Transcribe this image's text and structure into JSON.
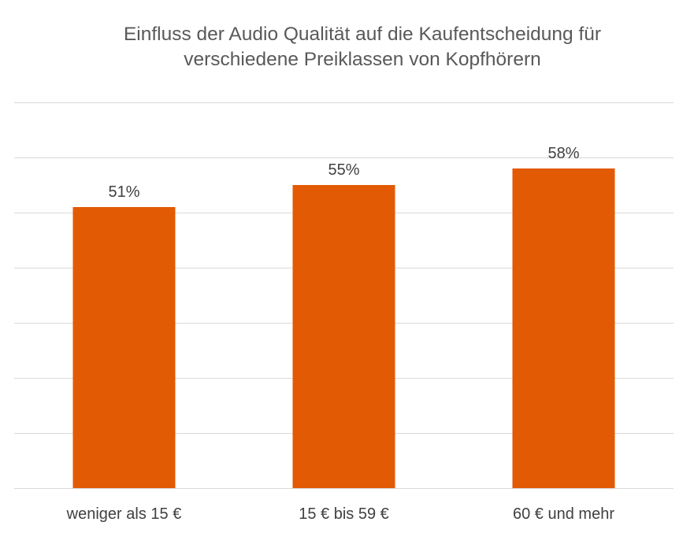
{
  "chart_data": {
    "type": "bar",
    "title_lines": [
      "Einfluss der Audio Qualität auf die Kaufentscheidung für",
      "verschiedene Preiklassen von Kopfhörern"
    ],
    "categories": [
      "weniger als 15 €",
      "15 € bis 59 €",
      "60 € und mehr"
    ],
    "values": [
      51,
      55,
      58
    ],
    "data_labels": [
      "51%",
      "55%",
      "58%"
    ],
    "xlabel": "",
    "ylabel": "",
    "ylim": [
      0,
      70
    ],
    "grid": true,
    "legend": "none",
    "bar_color": "#E35A04"
  }
}
